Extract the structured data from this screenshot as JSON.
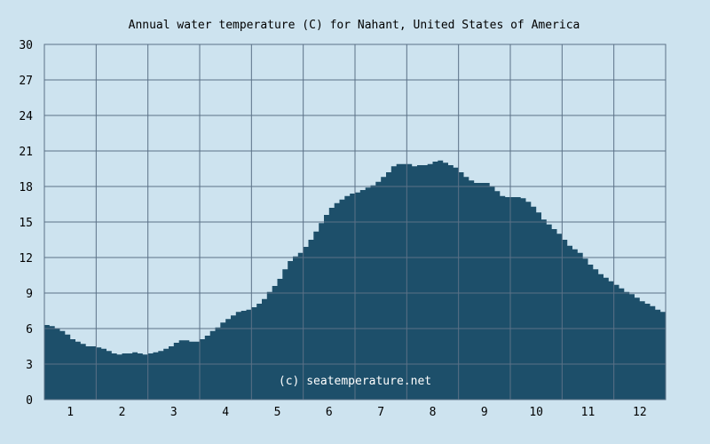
{
  "chart_data": {
    "type": "area",
    "title": "Annual water temperature (C) for Nahant, United States of America",
    "xlabel": "",
    "ylabel": "",
    "ylim": [
      0,
      30
    ],
    "yticks": [
      0,
      3,
      6,
      9,
      12,
      15,
      18,
      21,
      24,
      27,
      30
    ],
    "xlim": [
      0.5,
      12.5
    ],
    "xticks": [
      1,
      2,
      3,
      4,
      5,
      6,
      7,
      8,
      9,
      10,
      11,
      12
    ],
    "grid": true,
    "legend": "none",
    "watermark": "(c) seatemperature.net",
    "colors": {
      "background": "#cde3ef",
      "fill": "#1d4f6a",
      "grid": "#5b7187"
    },
    "series": [
      {
        "x": [
          0.5,
          0.6,
          0.7,
          0.8,
          0.9,
          1.0,
          1.1,
          1.2,
          1.3,
          1.4,
          1.5,
          1.6,
          1.7,
          1.8,
          1.9,
          2.0,
          2.1,
          2.2,
          2.3,
          2.4,
          2.5,
          2.6,
          2.7,
          2.8,
          2.9,
          3.0,
          3.1,
          3.2,
          3.3,
          3.4,
          3.5,
          3.6,
          3.7,
          3.8,
          3.9,
          4.0,
          4.1,
          4.2,
          4.3,
          4.4,
          4.5,
          4.6,
          4.7,
          4.8,
          4.9,
          5.0,
          5.1,
          5.2,
          5.3,
          5.4,
          5.5,
          5.6,
          5.7,
          5.8,
          5.9,
          6.0,
          6.1,
          6.2,
          6.3,
          6.4,
          6.5,
          6.6,
          6.7,
          6.8,
          6.9,
          7.0,
          7.1,
          7.2,
          7.3,
          7.4,
          7.5,
          7.6,
          7.7,
          7.8,
          7.9,
          8.0,
          8.1,
          8.2,
          8.3,
          8.4,
          8.5,
          8.6,
          8.7,
          8.8,
          8.9,
          9.0,
          9.1,
          9.2,
          9.3,
          9.4,
          9.5,
          9.6,
          9.7,
          9.8,
          9.9,
          10.0,
          10.1,
          10.2,
          10.3,
          10.4,
          10.5,
          10.6,
          10.7,
          10.8,
          10.9,
          11.0,
          11.1,
          11.2,
          11.3,
          11.4,
          11.5,
          11.6,
          11.7,
          11.8,
          11.9,
          12.0,
          12.1,
          12.2,
          12.3,
          12.4,
          12.5
        ],
        "y": [
          6.3,
          6.2,
          6.0,
          5.8,
          5.5,
          5.1,
          4.9,
          4.7,
          4.5,
          4.5,
          4.4,
          4.3,
          4.1,
          3.9,
          3.8,
          3.9,
          3.9,
          4.0,
          3.9,
          3.8,
          3.9,
          4.0,
          4.1,
          4.3,
          4.5,
          4.8,
          5.0,
          5.0,
          4.9,
          4.9,
          5.1,
          5.4,
          5.8,
          6.1,
          6.5,
          6.8,
          7.1,
          7.4,
          7.5,
          7.6,
          7.8,
          8.1,
          8.5,
          9.1,
          9.6,
          10.2,
          11.0,
          11.7,
          12.1,
          12.4,
          12.9,
          13.5,
          14.2,
          14.9,
          15.6,
          16.2,
          16.6,
          16.9,
          17.2,
          17.4,
          17.5,
          17.7,
          17.9,
          18.1,
          18.4,
          18.8,
          19.2,
          19.7,
          19.9,
          19.9,
          19.9,
          19.7,
          19.8,
          19.8,
          19.9,
          20.1,
          20.2,
          20.0,
          19.8,
          19.6,
          19.2,
          18.8,
          18.5,
          18.3,
          18.3,
          18.3,
          18.0,
          17.6,
          17.2,
          17.1,
          17.1,
          17.1,
          17.0,
          16.7,
          16.3,
          15.8,
          15.2,
          14.8,
          14.4,
          14.0,
          13.5,
          13.0,
          12.7,
          12.4,
          11.9,
          11.4,
          11.0,
          10.6,
          10.3,
          10.0,
          9.7,
          9.4,
          9.1,
          8.9,
          8.6,
          8.3,
          8.1,
          7.9,
          7.6,
          7.4,
          7.4
        ]
      }
    ]
  }
}
